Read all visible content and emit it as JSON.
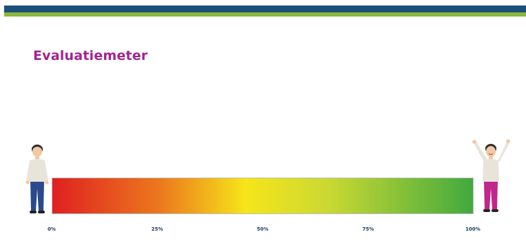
{
  "title": "Evaluatiemeter",
  "scale": {
    "ticks": [
      "0%",
      "25%",
      "50%",
      "75%",
      "100%"
    ]
  },
  "colors": {
    "header_blue": "#1c4f7c",
    "header_green": "#8ab83a",
    "title": "#a3238e",
    "meter_start": "#e02020",
    "meter_mid": "#f6e51a",
    "meter_end": "#42a93e"
  },
  "icons": {
    "left": "standing-person-icon",
    "right": "cheering-person-icon"
  }
}
